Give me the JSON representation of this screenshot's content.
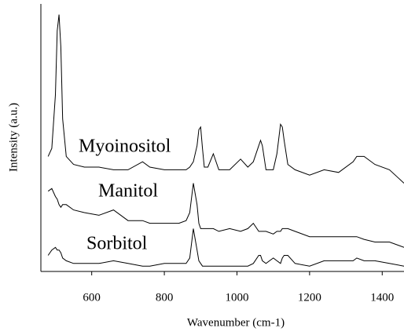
{
  "chart_data": {
    "type": "line",
    "xlabel": "Wavenumber (cm-1)",
    "ylabel": "Intensity (a.u.)",
    "x": [
      480,
      490,
      500,
      505,
      510,
      515,
      520,
      530,
      550,
      580,
      620,
      660,
      700,
      740,
      760,
      800,
      840,
      860,
      870,
      880,
      890,
      895,
      900,
      905,
      910,
      920,
      935,
      950,
      980,
      1010,
      1030,
      1045,
      1060,
      1065,
      1070,
      1080,
      1100,
      1110,
      1120,
      1125,
      1130,
      1140,
      1160,
      1200,
      1240,
      1280,
      1320,
      1330,
      1350,
      1380,
      1420,
      1460
    ],
    "series": [
      {
        "name": "Myoinositol",
        "color": "#000000",
        "values": [
          43,
          46,
          66,
          90,
          96,
          84,
          57,
          43,
          40,
          39,
          39,
          38,
          38,
          41,
          39,
          38,
          38,
          38,
          39,
          41,
          47,
          53,
          54,
          46,
          39,
          39,
          44,
          38,
          38,
          42,
          39,
          41,
          47,
          49,
          47,
          38,
          38,
          44,
          55,
          54,
          49,
          40,
          38,
          36,
          38,
          37,
          41,
          43,
          43,
          40,
          38,
          33
        ]
      },
      {
        "name": "Manitol",
        "color": "#000000",
        "values": [
          30,
          31,
          28,
          27,
          25,
          24,
          25,
          25,
          23,
          22,
          21,
          23,
          19,
          19,
          18,
          18,
          18,
          19,
          22,
          33,
          25,
          18,
          16,
          16,
          16,
          16,
          16,
          15,
          16,
          15,
          16,
          18,
          15,
          15,
          15,
          15,
          14,
          15,
          15,
          16,
          16,
          16,
          15,
          13,
          13,
          13,
          13,
          13,
          12,
          11,
          11,
          9
        ]
      },
      {
        "name": "Sorbitol",
        "color": "#000000",
        "values": [
          6,
          8,
          9,
          8,
          8,
          7,
          5,
          4,
          3,
          3,
          3,
          4,
          3,
          2,
          2,
          3,
          3,
          3,
          5,
          16,
          8,
          4,
          3,
          2,
          2,
          2,
          2,
          2,
          2,
          2,
          2,
          3,
          6,
          6,
          4,
          3,
          5,
          4,
          3,
          5,
          6,
          6,
          3,
          2,
          4,
          4,
          4,
          5,
          4,
          4,
          3,
          2
        ]
      }
    ],
    "xlim": [
      460,
      1460
    ],
    "xticks": [
      600,
      800,
      1000,
      1200,
      1400
    ],
    "ylim": [
      0,
      100
    ]
  }
}
